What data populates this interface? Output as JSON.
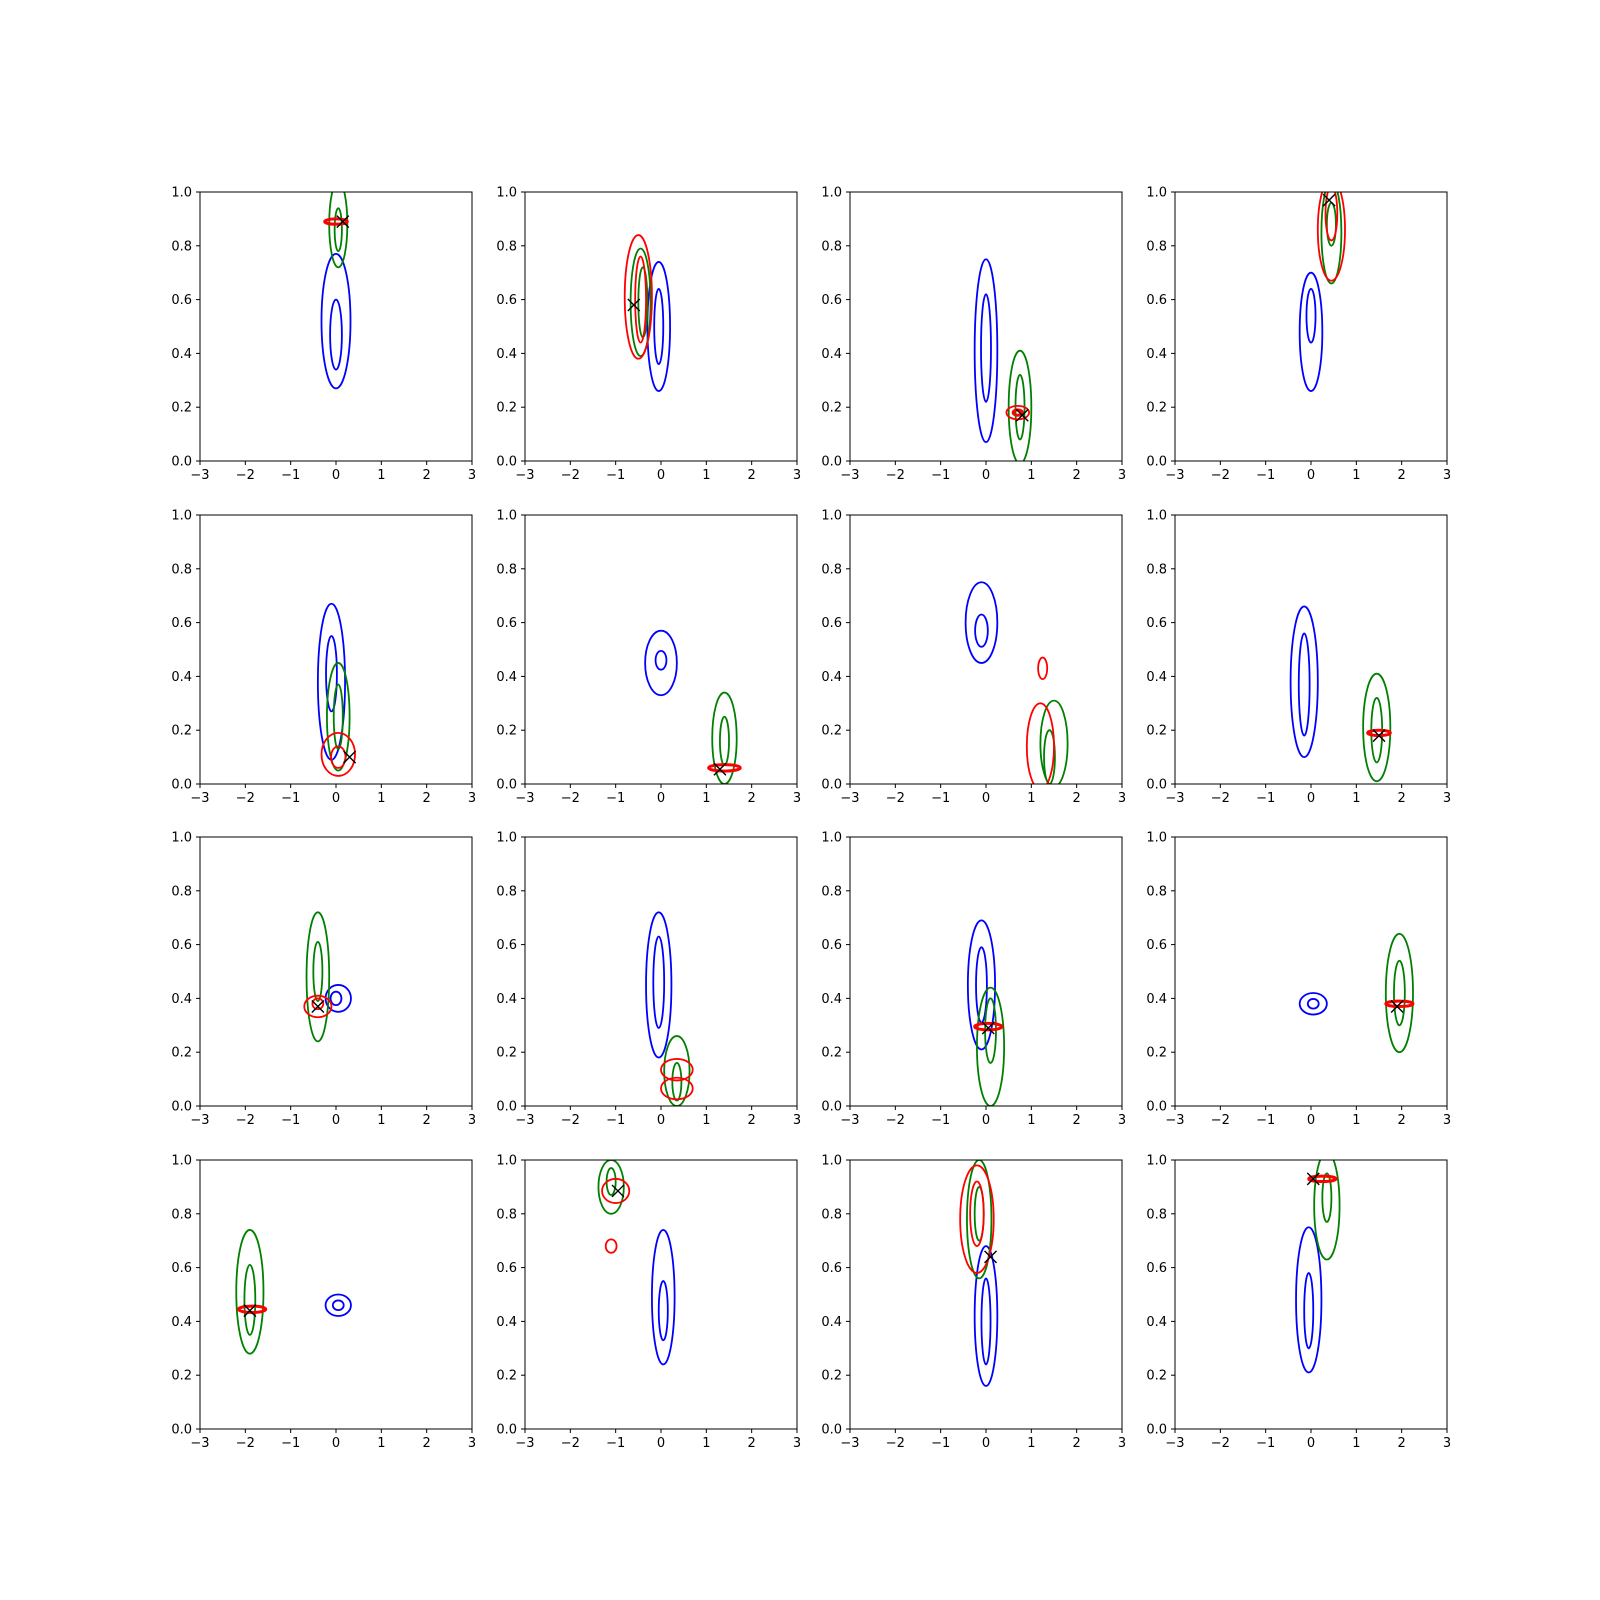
{
  "figure": {
    "colors": {
      "background": "#ffffff",
      "axes": "#000000",
      "prior": "#0000ff",
      "posterior": "#008000",
      "estimate": "#ff0000",
      "truth_marker": "#000000"
    },
    "truth_marker_icon": "x-marker-icon"
  },
  "chart_data": [
    {
      "type": "contour",
      "xlim": [
        -3,
        3
      ],
      "ylim": [
        0,
        1
      ],
      "grid": false,
      "x_ticks": [
        "−3",
        "−2",
        "−1",
        "0",
        "1",
        "2",
        "3"
      ],
      "y_ticks": [
        "0.0",
        "0.2",
        "0.4",
        "0.6",
        "0.8",
        "1.0"
      ],
      "blue": [
        {
          "cx": 0,
          "cy": 0.52,
          "rx": 0.32,
          "ry": 0.25
        },
        {
          "cx": 0,
          "cy": 0.47,
          "rx": 0.13,
          "ry": 0.13
        }
      ],
      "green": [
        {
          "cx": 0.05,
          "cy": 0.88,
          "rx": 0.2,
          "ry": 0.16
        },
        {
          "cx": 0.05,
          "cy": 0.86,
          "rx": 0.08,
          "ry": 0.08
        }
      ],
      "red": [
        {
          "cx": 0,
          "cy": 0.89,
          "rx": 0.25,
          "ry": 0.01
        }
      ],
      "truth": {
        "x": 0.15,
        "y": 0.89
      }
    },
    {
      "type": "contour",
      "xlim": [
        -3,
        3
      ],
      "ylim": [
        0,
        1
      ],
      "grid": false,
      "x_ticks": [
        "−3",
        "−2",
        "−1",
        "0",
        "1",
        "2",
        "3"
      ],
      "y_ticks": [
        "0.0",
        "0.2",
        "0.4",
        "0.6",
        "0.8",
        "1.0"
      ],
      "blue": [
        {
          "cx": -0.05,
          "cy": 0.5,
          "rx": 0.25,
          "ry": 0.24
        },
        {
          "cx": -0.05,
          "cy": 0.5,
          "rx": 0.1,
          "ry": 0.14
        }
      ],
      "green": [
        {
          "cx": -0.45,
          "cy": 0.59,
          "rx": 0.22,
          "ry": 0.2
        },
        {
          "cx": -0.4,
          "cy": 0.59,
          "rx": 0.1,
          "ry": 0.13
        }
      ],
      "red": [
        {
          "cx": -0.5,
          "cy": 0.61,
          "rx": 0.3,
          "ry": 0.23
        },
        {
          "cx": -0.45,
          "cy": 0.6,
          "rx": 0.12,
          "ry": 0.16
        }
      ],
      "truth": {
        "x": -0.6,
        "y": 0.58
      }
    },
    {
      "type": "contour",
      "xlim": [
        -3,
        3
      ],
      "ylim": [
        0,
        1
      ],
      "grid": false,
      "x_ticks": [
        "−3",
        "−2",
        "−1",
        "0",
        "1",
        "2",
        "3"
      ],
      "y_ticks": [
        "0.0",
        "0.2",
        "0.4",
        "0.6",
        "0.8",
        "1.0"
      ],
      "blue": [
        {
          "cx": 0,
          "cy": 0.41,
          "rx": 0.25,
          "ry": 0.34
        },
        {
          "cx": 0,
          "cy": 0.42,
          "rx": 0.11,
          "ry": 0.2
        }
      ],
      "green": [
        {
          "cx": 0.75,
          "cy": 0.2,
          "rx": 0.25,
          "ry": 0.21
        },
        {
          "cx": 0.75,
          "cy": 0.2,
          "rx": 0.1,
          "ry": 0.12
        }
      ],
      "red": [
        {
          "cx": 0.7,
          "cy": 0.18,
          "rx": 0.25,
          "ry": 0.025
        },
        {
          "cx": 0.7,
          "cy": 0.18,
          "rx": 0.1,
          "ry": 0.01
        }
      ],
      "truth": {
        "x": 0.8,
        "y": 0.17
      }
    },
    {
      "type": "contour",
      "xlim": [
        -3,
        3
      ],
      "ylim": [
        0,
        1
      ],
      "grid": false,
      "x_ticks": [
        "−3",
        "−2",
        "−1",
        "0",
        "1",
        "2",
        "3"
      ],
      "y_ticks": [
        "0.0",
        "0.2",
        "0.4",
        "0.6",
        "0.8",
        "1.0"
      ],
      "blue": [
        {
          "cx": 0,
          "cy": 0.48,
          "rx": 0.25,
          "ry": 0.22
        },
        {
          "cx": 0,
          "cy": 0.54,
          "rx": 0.1,
          "ry": 0.1
        }
      ],
      "green": [
        {
          "cx": 0.45,
          "cy": 0.85,
          "rx": 0.22,
          "ry": 0.19
        },
        {
          "cx": 0.45,
          "cy": 0.88,
          "rx": 0.1,
          "ry": 0.08
        }
      ],
      "red": [
        {
          "cx": 0.45,
          "cy": 0.86,
          "rx": 0.3,
          "ry": 0.19
        },
        {
          "cx": 0.45,
          "cy": 0.92,
          "rx": 0.13,
          "ry": 0.1
        }
      ],
      "truth": {
        "x": 0.4,
        "y": 0.97
      }
    },
    {
      "type": "contour",
      "xlim": [
        -3,
        3
      ],
      "ylim": [
        0,
        1
      ],
      "grid": false,
      "x_ticks": [
        "−3",
        "−2",
        "−1",
        "0",
        "1",
        "2",
        "3"
      ],
      "y_ticks": [
        "0.0",
        "0.2",
        "0.4",
        "0.6",
        "0.8",
        "1.0"
      ],
      "blue": [
        {
          "cx": -0.1,
          "cy": 0.38,
          "rx": 0.3,
          "ry": 0.29
        },
        {
          "cx": -0.1,
          "cy": 0.41,
          "rx": 0.12,
          "ry": 0.14
        }
      ],
      "green": [
        {
          "cx": 0.05,
          "cy": 0.25,
          "rx": 0.25,
          "ry": 0.2
        },
        {
          "cx": 0.05,
          "cy": 0.25,
          "rx": 0.1,
          "ry": 0.12
        }
      ],
      "red": [
        {
          "cx": 0.05,
          "cy": 0.11,
          "rx": 0.37,
          "ry": 0.08
        },
        {
          "cx": 0.05,
          "cy": 0.1,
          "rx": 0.16,
          "ry": 0.04
        }
      ],
      "truth": {
        "x": 0.3,
        "y": 0.1
      }
    },
    {
      "type": "contour",
      "xlim": [
        -3,
        3
      ],
      "ylim": [
        0,
        1
      ],
      "grid": false,
      "x_ticks": [
        "−3",
        "−2",
        "−1",
        "0",
        "1",
        "2",
        "3"
      ],
      "y_ticks": [
        "0.0",
        "0.2",
        "0.4",
        "0.6",
        "0.8",
        "1.0"
      ],
      "blue": [
        {
          "cx": 0,
          "cy": 0.45,
          "rx": 0.35,
          "ry": 0.12
        },
        {
          "cx": 0,
          "cy": 0.46,
          "rx": 0.12,
          "ry": 0.035
        }
      ],
      "green": [
        {
          "cx": 1.4,
          "cy": 0.17,
          "rx": 0.27,
          "ry": 0.17
        },
        {
          "cx": 1.4,
          "cy": 0.16,
          "rx": 0.1,
          "ry": 0.09
        }
      ],
      "red": [
        {
          "cx": 1.4,
          "cy": 0.06,
          "rx": 0.35,
          "ry": 0.012
        }
      ],
      "truth": {
        "x": 1.3,
        "y": 0.055
      }
    },
    {
      "type": "contour",
      "xlim": [
        -3,
        3
      ],
      "ylim": [
        0,
        1
      ],
      "grid": false,
      "x_ticks": [
        "−3",
        "−2",
        "−1",
        "0",
        "1",
        "2",
        "3"
      ],
      "y_ticks": [
        "0.0",
        "0.2",
        "0.4",
        "0.6",
        "0.8",
        "1.0"
      ],
      "blue": [
        {
          "cx": -0.1,
          "cy": 0.6,
          "rx": 0.35,
          "ry": 0.15
        },
        {
          "cx": -0.1,
          "cy": 0.57,
          "rx": 0.14,
          "ry": 0.06
        }
      ],
      "green": [
        {
          "cx": 1.5,
          "cy": 0.15,
          "rx": 0.3,
          "ry": 0.16
        },
        {
          "cx": 1.4,
          "cy": 0.1,
          "rx": 0.12,
          "ry": 0.1
        }
      ],
      "red": [
        {
          "cx": 1.2,
          "cy": 0.14,
          "rx": 0.3,
          "ry": 0.16
        },
        {
          "cx": 1.25,
          "cy": 0.43,
          "rx": 0.1,
          "ry": 0.04
        }
      ],
      "truth": null
    },
    {
      "type": "contour",
      "xlim": [
        -3,
        3
      ],
      "ylim": [
        0,
        1
      ],
      "grid": false,
      "x_ticks": [
        "−3",
        "−2",
        "−1",
        "0",
        "1",
        "2",
        "3"
      ],
      "y_ticks": [
        "0.0",
        "0.2",
        "0.4",
        "0.6",
        "0.8",
        "1.0"
      ],
      "blue": [
        {
          "cx": -0.15,
          "cy": 0.38,
          "rx": 0.3,
          "ry": 0.28
        },
        {
          "cx": -0.15,
          "cy": 0.37,
          "rx": 0.12,
          "ry": 0.19
        }
      ],
      "green": [
        {
          "cx": 1.45,
          "cy": 0.21,
          "rx": 0.3,
          "ry": 0.2
        },
        {
          "cx": 1.45,
          "cy": 0.2,
          "rx": 0.12,
          "ry": 0.12
        }
      ],
      "red": [
        {
          "cx": 1.5,
          "cy": 0.19,
          "rx": 0.25,
          "ry": 0.01
        }
      ],
      "truth": {
        "x": 1.5,
        "y": 0.18
      }
    },
    {
      "type": "contour",
      "xlim": [
        -3,
        3
      ],
      "ylim": [
        0,
        1
      ],
      "grid": false,
      "x_ticks": [
        "−3",
        "−2",
        "−1",
        "0",
        "1",
        "2",
        "3"
      ],
      "y_ticks": [
        "0.0",
        "0.2",
        "0.4",
        "0.6",
        "0.8",
        "1.0"
      ],
      "blue": [
        {
          "cx": 0.05,
          "cy": 0.4,
          "rx": 0.28,
          "ry": 0.05
        },
        {
          "cx": 0,
          "cy": 0.4,
          "rx": 0.12,
          "ry": 0.025
        }
      ],
      "green": [
        {
          "cx": -0.4,
          "cy": 0.48,
          "rx": 0.25,
          "ry": 0.24
        },
        {
          "cx": -0.4,
          "cy": 0.5,
          "rx": 0.1,
          "ry": 0.11
        }
      ],
      "red": [
        {
          "cx": -0.4,
          "cy": 0.37,
          "rx": 0.3,
          "ry": 0.04
        },
        {
          "cx": -0.4,
          "cy": 0.38,
          "rx": 0.12,
          "ry": 0.02
        }
      ],
      "truth": {
        "x": -0.4,
        "y": 0.37
      }
    },
    {
      "type": "contour",
      "xlim": [
        -3,
        3
      ],
      "ylim": [
        0,
        1
      ],
      "grid": false,
      "x_ticks": [
        "−3",
        "−2",
        "−1",
        "0",
        "1",
        "2",
        "3"
      ],
      "y_ticks": [
        "0.0",
        "0.2",
        "0.4",
        "0.6",
        "0.8",
        "1.0"
      ],
      "blue": [
        {
          "cx": -0.05,
          "cy": 0.45,
          "rx": 0.28,
          "ry": 0.27
        },
        {
          "cx": -0.05,
          "cy": 0.46,
          "rx": 0.12,
          "ry": 0.17
        }
      ],
      "green": [
        {
          "cx": 0.35,
          "cy": 0.13,
          "rx": 0.28,
          "ry": 0.13
        },
        {
          "cx": 0.35,
          "cy": 0.09,
          "rx": 0.1,
          "ry": 0.07
        }
      ],
      "red": [
        {
          "cx": 0.35,
          "cy": 0.135,
          "rx": 0.35,
          "ry": 0.04
        },
        {
          "cx": 0.35,
          "cy": 0.065,
          "rx": 0.35,
          "ry": 0.04
        }
      ],
      "truth": null
    },
    {
      "type": "contour",
      "xlim": [
        -3,
        3
      ],
      "ylim": [
        0,
        1
      ],
      "grid": false,
      "x_ticks": [
        "−3",
        "−2",
        "−1",
        "0",
        "1",
        "2",
        "3"
      ],
      "y_ticks": [
        "0.0",
        "0.2",
        "0.4",
        "0.6",
        "0.8",
        "1.0"
      ],
      "blue": [
        {
          "cx": -0.1,
          "cy": 0.45,
          "rx": 0.3,
          "ry": 0.24
        },
        {
          "cx": -0.1,
          "cy": 0.45,
          "rx": 0.12,
          "ry": 0.14
        }
      ],
      "green": [
        {
          "cx": 0.1,
          "cy": 0.22,
          "rx": 0.3,
          "ry": 0.22
        },
        {
          "cx": 0.1,
          "cy": 0.28,
          "rx": 0.12,
          "ry": 0.12
        }
      ],
      "red": [
        {
          "cx": 0.05,
          "cy": 0.295,
          "rx": 0.3,
          "ry": 0.012
        }
      ],
      "truth": {
        "x": 0.05,
        "y": 0.29
      }
    },
    {
      "type": "contour",
      "xlim": [
        -3,
        3
      ],
      "ylim": [
        0,
        1
      ],
      "grid": false,
      "x_ticks": [
        "−3",
        "−2",
        "−1",
        "0",
        "1",
        "2",
        "3"
      ],
      "y_ticks": [
        "0.0",
        "0.2",
        "0.4",
        "0.6",
        "0.8",
        "1.0"
      ],
      "blue": [
        {
          "cx": 0.05,
          "cy": 0.38,
          "rx": 0.3,
          "ry": 0.04
        },
        {
          "cx": 0.05,
          "cy": 0.38,
          "rx": 0.12,
          "ry": 0.018
        }
      ],
      "green": [
        {
          "cx": 1.95,
          "cy": 0.42,
          "rx": 0.3,
          "ry": 0.22
        },
        {
          "cx": 1.95,
          "cy": 0.42,
          "rx": 0.12,
          "ry": 0.12
        }
      ],
      "red": [
        {
          "cx": 1.95,
          "cy": 0.38,
          "rx": 0.3,
          "ry": 0.01
        }
      ],
      "truth": {
        "x": 1.9,
        "y": 0.37
      }
    },
    {
      "type": "contour",
      "xlim": [
        -3,
        3
      ],
      "ylim": [
        0,
        1
      ],
      "grid": false,
      "x_ticks": [
        "−3",
        "−2",
        "−1",
        "0",
        "1",
        "2",
        "3"
      ],
      "y_ticks": [
        "0.0",
        "0.2",
        "0.4",
        "0.6",
        "0.8",
        "1.0"
      ],
      "blue": [
        {
          "cx": 0.05,
          "cy": 0.46,
          "rx": 0.28,
          "ry": 0.04
        },
        {
          "cx": 0.05,
          "cy": 0.46,
          "rx": 0.12,
          "ry": 0.018
        }
      ],
      "green": [
        {
          "cx": -1.9,
          "cy": 0.51,
          "rx": 0.3,
          "ry": 0.23
        },
        {
          "cx": -1.9,
          "cy": 0.48,
          "rx": 0.12,
          "ry": 0.13
        }
      ],
      "red": [
        {
          "cx": -1.85,
          "cy": 0.445,
          "rx": 0.3,
          "ry": 0.012
        }
      ],
      "truth": {
        "x": -1.9,
        "y": 0.44
      }
    },
    {
      "type": "contour",
      "xlim": [
        -3,
        3
      ],
      "ylim": [
        0,
        1
      ],
      "grid": false,
      "x_ticks": [
        "−3",
        "−2",
        "−1",
        "0",
        "1",
        "2",
        "3"
      ],
      "y_ticks": [
        "0.0",
        "0.2",
        "0.4",
        "0.6",
        "0.8",
        "1.0"
      ],
      "blue": [
        {
          "cx": 0.05,
          "cy": 0.49,
          "rx": 0.25,
          "ry": 0.25
        },
        {
          "cx": 0.05,
          "cy": 0.44,
          "rx": 0.1,
          "ry": 0.11
        }
      ],
      "green": [
        {
          "cx": -1.1,
          "cy": 0.9,
          "rx": 0.28,
          "ry": 0.1
        },
        {
          "cx": -1.1,
          "cy": 0.92,
          "rx": 0.1,
          "ry": 0.05
        }
      ],
      "red": [
        {
          "cx": -1,
          "cy": 0.885,
          "rx": 0.3,
          "ry": 0.045
        },
        {
          "cx": -1.1,
          "cy": 0.68,
          "rx": 0.12,
          "ry": 0.025
        }
      ],
      "truth": {
        "x": -0.95,
        "y": 0.885
      }
    },
    {
      "type": "contour",
      "xlim": [
        -3,
        3
      ],
      "ylim": [
        0,
        1
      ],
      "grid": false,
      "x_ticks": [
        "−3",
        "−2",
        "−1",
        "0",
        "1",
        "2",
        "3"
      ],
      "y_ticks": [
        "0.0",
        "0.2",
        "0.4",
        "0.6",
        "0.8",
        "1.0"
      ],
      "blue": [
        {
          "cx": 0,
          "cy": 0.42,
          "rx": 0.25,
          "ry": 0.26
        },
        {
          "cx": 0,
          "cy": 0.4,
          "rx": 0.1,
          "ry": 0.16
        }
      ],
      "green": [
        {
          "cx": -0.15,
          "cy": 0.78,
          "rx": 0.27,
          "ry": 0.22
        },
        {
          "cx": -0.15,
          "cy": 0.8,
          "rx": 0.1,
          "ry": 0.1
        }
      ],
      "red": [
        {
          "cx": -0.2,
          "cy": 0.78,
          "rx": 0.37,
          "ry": 0.2
        },
        {
          "cx": -0.2,
          "cy": 0.8,
          "rx": 0.15,
          "ry": 0.12
        }
      ],
      "truth": {
        "x": 0.1,
        "y": 0.64
      }
    },
    {
      "type": "contour",
      "xlim": [
        -3,
        3
      ],
      "ylim": [
        0,
        1
      ],
      "grid": false,
      "x_ticks": [
        "−3",
        "−2",
        "−1",
        "0",
        "1",
        "2",
        "3"
      ],
      "y_ticks": [
        "0.0",
        "0.2",
        "0.4",
        "0.6",
        "0.8",
        "1.0"
      ],
      "blue": [
        {
          "cx": -0.05,
          "cy": 0.48,
          "rx": 0.28,
          "ry": 0.27
        },
        {
          "cx": -0.05,
          "cy": 0.44,
          "rx": 0.1,
          "ry": 0.14
        }
      ],
      "green": [
        {
          "cx": 0.35,
          "cy": 0.83,
          "rx": 0.28,
          "ry": 0.2
        },
        {
          "cx": 0.35,
          "cy": 0.86,
          "rx": 0.1,
          "ry": 0.09
        }
      ],
      "red": [
        {
          "cx": 0.25,
          "cy": 0.93,
          "rx": 0.3,
          "ry": 0.01
        }
      ],
      "truth": {
        "x": 0.05,
        "y": 0.93
      }
    }
  ]
}
